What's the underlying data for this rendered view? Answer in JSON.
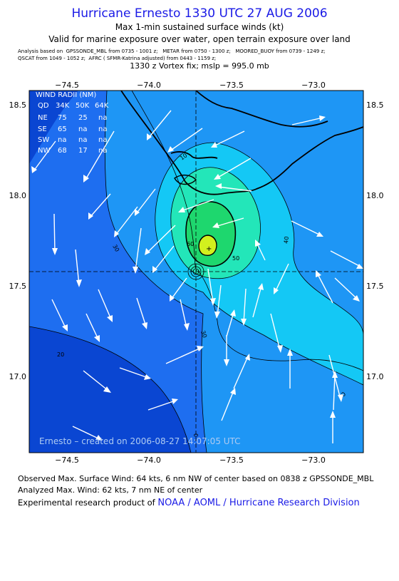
{
  "header": {
    "title": "Hurricane Ernesto 1330 UTC 27 AUG 2006",
    "subtitle1": "Max 1-min sustained surface winds (kt)",
    "subtitle2": "Valid for marine exposure over water, open terrain exposure over land",
    "analysis_line1": "Analysis based on  GPSSONDE_MBL from 0735 - 1001 z;   METAR from 0750 - 1300 z;   MOORED_BUOY from 0739 - 1249 z;",
    "analysis_line2": "QSCAT from 1049 - 1052 z;  AFRC ( SFMR-Katrina adjusted) from 0443 - 1159 z;",
    "vortex_fix": "1330 z Vortex fix; mslp = 995.0 mb"
  },
  "map": {
    "top_lon_labels": [
      "−74.5",
      "−74.0",
      "−73.5",
      "−73.0"
    ],
    "bottom_lon_labels": [
      "−74.5",
      "−74.0",
      "−73.5",
      "−73.0"
    ],
    "left_lat_labels": [
      "18.5",
      "18.0",
      "17.5",
      "17.0"
    ],
    "right_lat_labels": [
      "18.5",
      "18.0",
      "17.5",
      "17.0"
    ],
    "wind_radii_title": "WIND RADII (NM)",
    "wind_radii_header": [
      "QD",
      "34K",
      "50K",
      "64K"
    ],
    "wind_radii_rows": [
      [
        "NE",
        "75",
        "25",
        "na"
      ],
      [
        "SE",
        "65",
        "na",
        "na"
      ],
      [
        "SW",
        "na",
        "na",
        "na"
      ],
      [
        "NW",
        "68",
        "17",
        "na"
      ]
    ],
    "contour_labels": [
      "10",
      "20",
      "30",
      "40",
      "30",
      "20",
      "50",
      "60",
      "0"
    ],
    "credit": "Ernesto – created on 2006-08-27 14:07:05 UTC",
    "colors": {
      "band_lt20": "#0a46d2",
      "band_20_30": "#1e6ef0",
      "band_30_40": "#1e96f5",
      "band_40_50": "#14c8f5",
      "band_50_60": "#23e6b9",
      "band_60_64": "#1ed76e",
      "band_64plus": "#d2f01e",
      "land_outline": "#000000"
    }
  },
  "footer": {
    "observed": "Observed Max. Surface Wind: 64 kts, 6 nm NW of center based on 0838 z GPSSONDE_MBL",
    "analyzed": "Analyzed Max. Wind: 62 kts, 7 nm NE of center",
    "product_prefix": "Experimental research product of",
    "product_link": "NOAA / AOML / Hurricane Research Division"
  }
}
